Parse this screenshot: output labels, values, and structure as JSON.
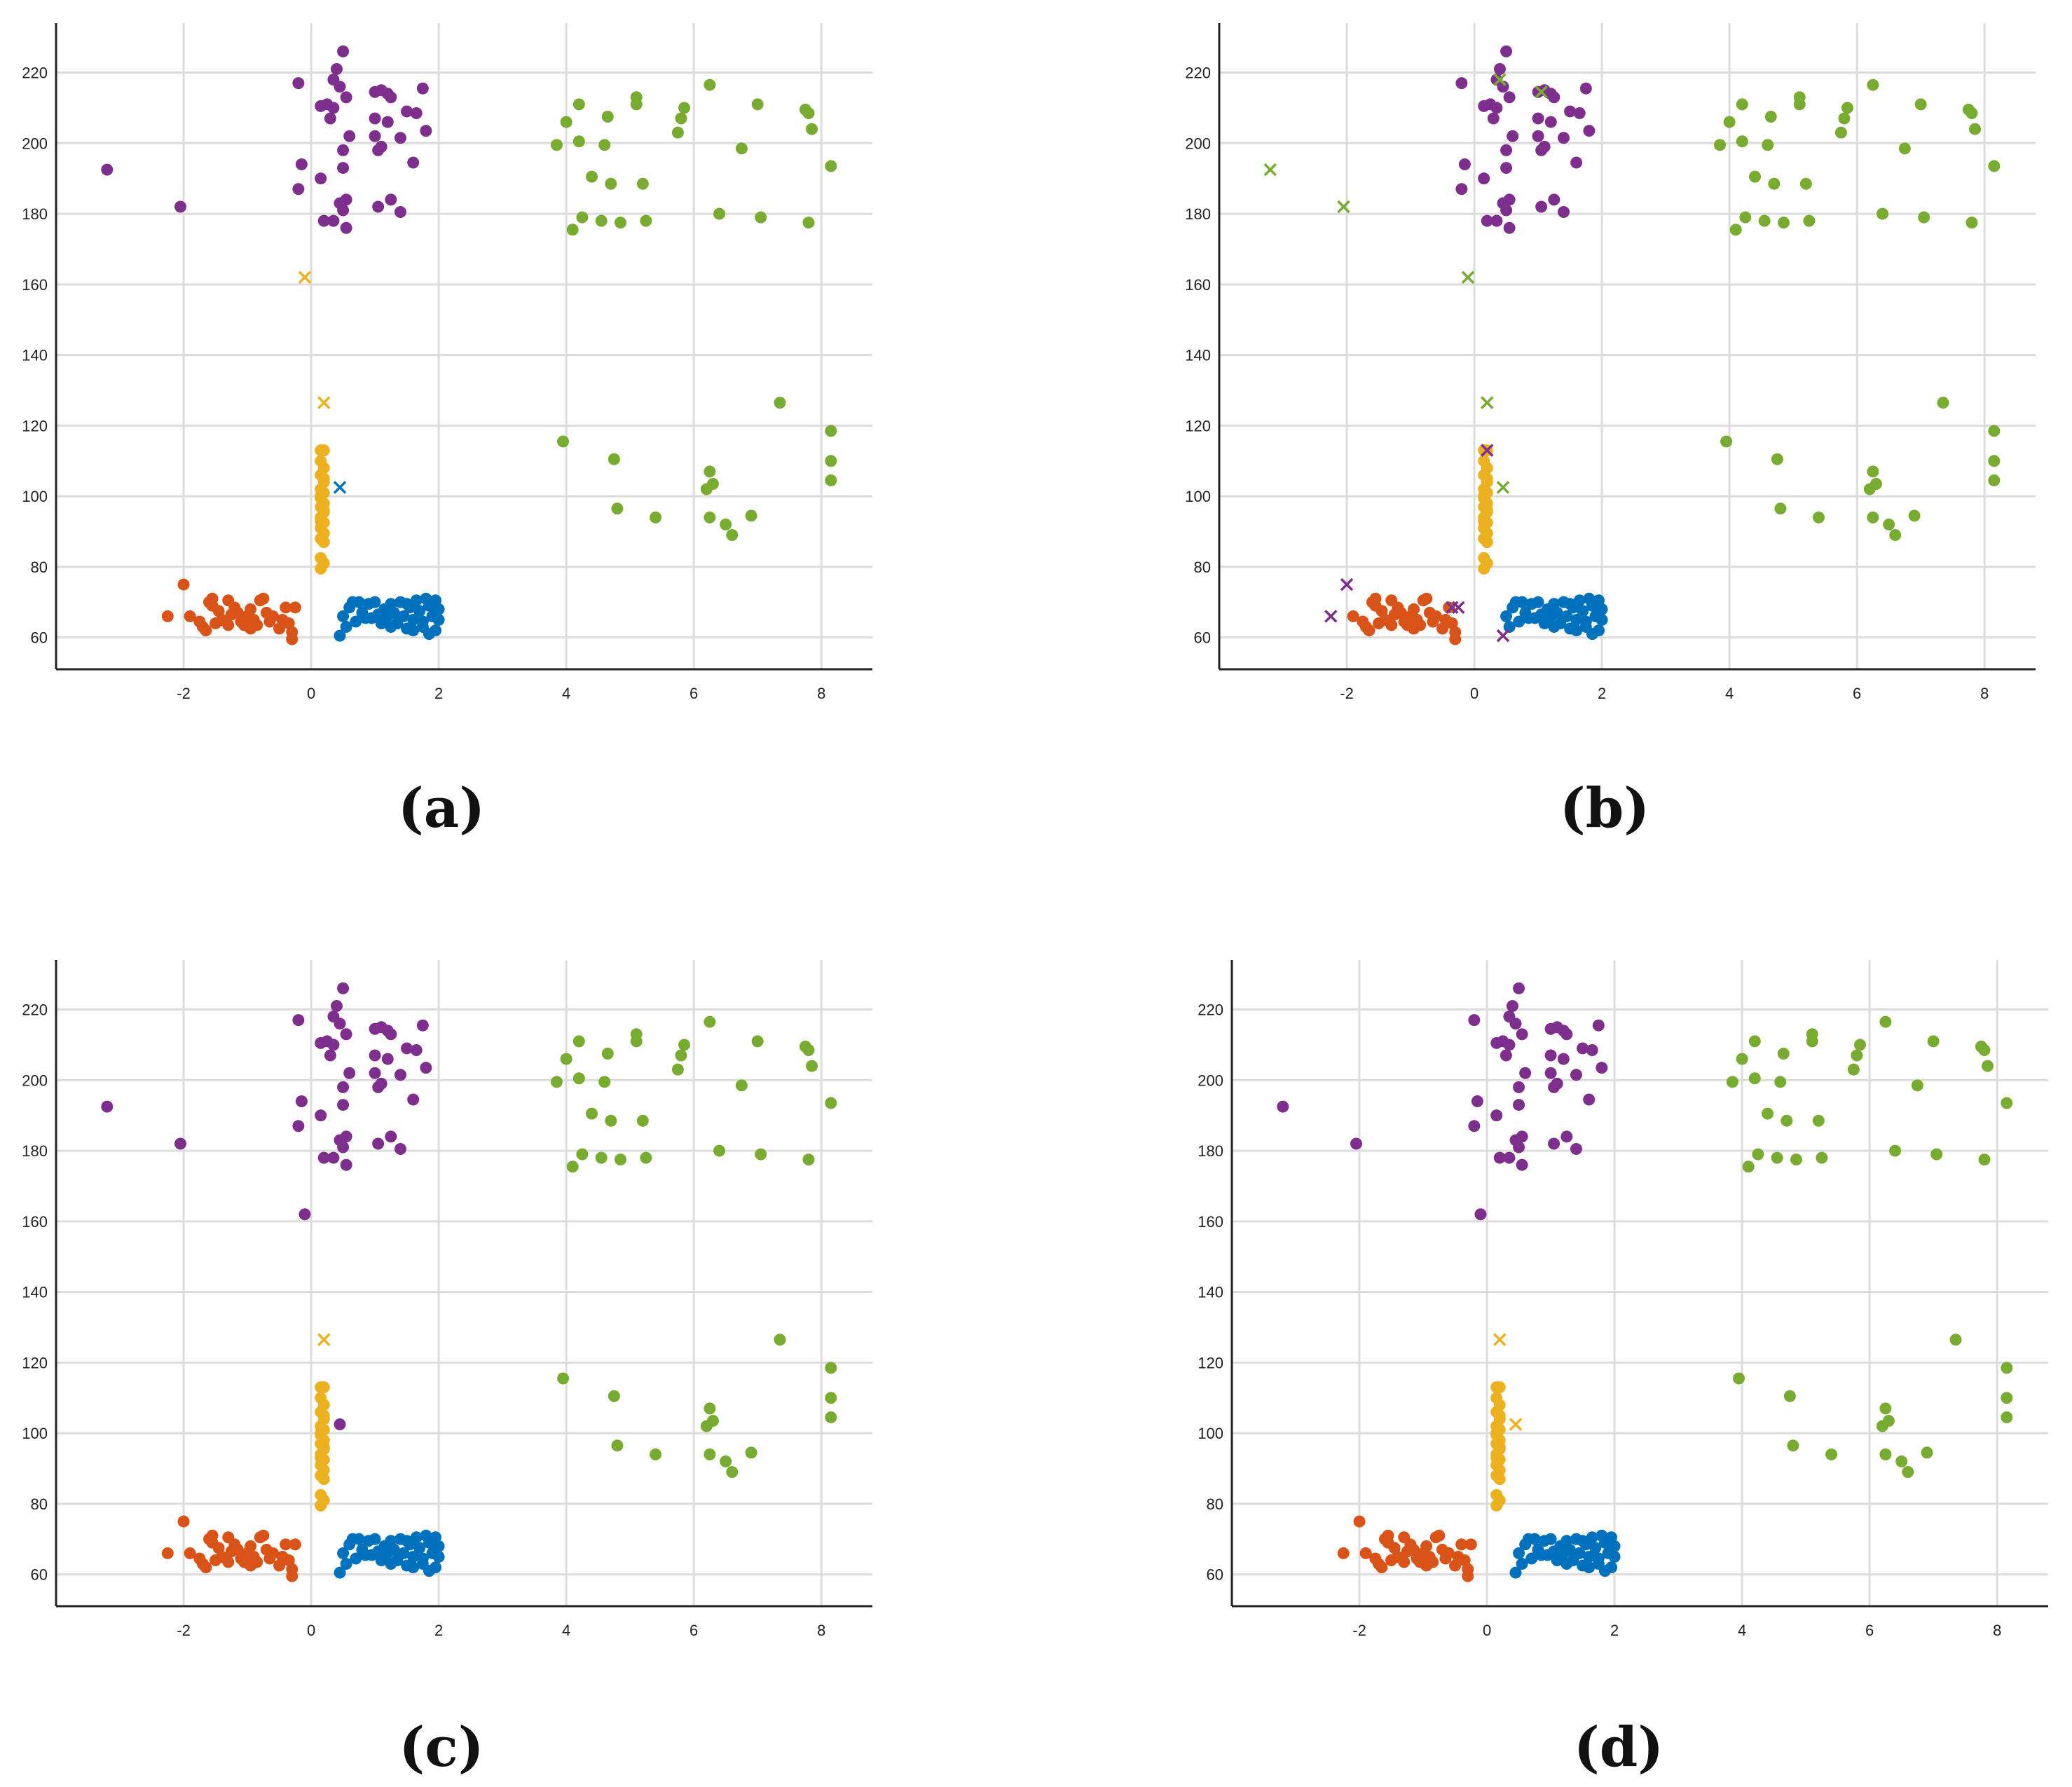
{
  "chart_data": [
    {
      "panel": "a",
      "label": "(a)",
      "type": "scatter",
      "xlim": [
        -4,
        8.8
      ],
      "ylim": [
        51,
        234
      ],
      "xticks": [
        -2,
        0,
        2,
        4,
        6,
        8
      ],
      "yticks": [
        60,
        80,
        100,
        120,
        140,
        160,
        180,
        200,
        220
      ],
      "grid": true,
      "outliers": [
        [
          -0.1,
          162,
          "yellow"
        ],
        [
          0.2,
          126.5,
          "yellow"
        ],
        [
          0.45,
          102.5,
          "blue"
        ]
      ],
      "point_overrides": []
    },
    {
      "panel": "b",
      "label": "(b)",
      "type": "scatter",
      "xlim": [
        -4,
        8.8
      ],
      "ylim": [
        51,
        234
      ],
      "xticks": [
        -2,
        0,
        2,
        4,
        6,
        8
      ],
      "yticks": [
        60,
        80,
        100,
        120,
        140,
        160,
        180,
        200,
        220
      ],
      "grid": true,
      "outliers": [
        [
          -3.2,
          192.5,
          "green"
        ],
        [
          -2.05,
          182,
          "green"
        ],
        [
          -0.1,
          162,
          "green"
        ],
        [
          0.2,
          126.5,
          "green"
        ],
        [
          0.45,
          102.5,
          "green"
        ],
        [
          0.2,
          113,
          "purple"
        ],
        [
          -2.0,
          75,
          "purple"
        ],
        [
          -2.25,
          66,
          "purple"
        ],
        [
          -0.35,
          68.5,
          "purple"
        ],
        [
          -0.25,
          68.5,
          "purple"
        ],
        [
          0.45,
          60.5,
          "purple"
        ],
        [
          0.4,
          218,
          "green"
        ],
        [
          1.05,
          214.5,
          "green"
        ]
      ],
      "point_overrides": [
        [
          -3.2,
          192.5
        ],
        [
          -2.05,
          182
        ],
        [
          -2.0,
          75
        ],
        [
          -2.25,
          66
        ],
        [
          0.45,
          60.5
        ],
        [
          -0.35,
          68.5
        ],
        [
          -0.25,
          68.5
        ]
      ]
    },
    {
      "panel": "c",
      "label": "(c)",
      "type": "scatter",
      "xlim": [
        -4,
        8.8
      ],
      "ylim": [
        51,
        234
      ],
      "xticks": [
        -2,
        0,
        2,
        4,
        6,
        8
      ],
      "yticks": [
        60,
        80,
        100,
        120,
        140,
        160,
        180,
        200,
        220
      ],
      "grid": true,
      "outliers": [
        [
          0.2,
          126.5,
          "yellow"
        ]
      ],
      "extra_points": [
        [
          -0.1,
          162,
          "purple"
        ],
        [
          0.45,
          102.5,
          "purple"
        ]
      ],
      "point_overrides": []
    },
    {
      "panel": "d",
      "label": "(d)",
      "type": "scatter",
      "xlim": [
        -4,
        8.8
      ],
      "ylim": [
        51,
        234
      ],
      "xticks": [
        -2,
        0,
        2,
        4,
        6,
        8
      ],
      "yticks": [
        60,
        80,
        100,
        120,
        140,
        160,
        180,
        200,
        220
      ],
      "grid": true,
      "outliers": [
        [
          0.2,
          126.5,
          "yellow"
        ],
        [
          0.45,
          102.5,
          "yellow"
        ]
      ],
      "extra_points": [
        [
          -0.1,
          162,
          "purple"
        ]
      ],
      "point_overrides": []
    }
  ],
  "colors": {
    "blue": "#0072bd",
    "orange": "#d95319",
    "yellow": "#edb120",
    "purple": "#7e2f8e",
    "green": "#77ac30",
    "grid": "#dcdcdc",
    "axis": "#222222"
  },
  "clusters": {
    "purple": [
      [
        -3.2,
        192.5
      ],
      [
        -2.05,
        182
      ],
      [
        -0.2,
        217
      ],
      [
        -0.15,
        194
      ],
      [
        -0.2,
        187
      ],
      [
        0.15,
        210.5
      ],
      [
        0.25,
        211
      ],
      [
        0.35,
        218
      ],
      [
        0.4,
        221
      ],
      [
        0.5,
        226
      ],
      [
        0.45,
        216
      ],
      [
        0.55,
        213
      ],
      [
        0.6,
        202
      ],
      [
        0.5,
        198
      ],
      [
        0.5,
        193
      ],
      [
        0.45,
        183
      ],
      [
        0.55,
        184
      ],
      [
        0.5,
        181
      ],
      [
        0.55,
        176
      ],
      [
        0.35,
        178
      ],
      [
        0.2,
        178
      ],
      [
        0.15,
        190
      ],
      [
        0.3,
        207
      ],
      [
        0.35,
        210
      ],
      [
        1.0,
        214.5
      ],
      [
        1.1,
        215
      ],
      [
        1.2,
        214
      ],
      [
        1.25,
        213
      ],
      [
        1.0,
        207
      ],
      [
        1.2,
        206
      ],
      [
        1.4,
        201.5
      ],
      [
        1.5,
        209
      ],
      [
        1.75,
        215.5
      ],
      [
        1.8,
        203.5
      ],
      [
        1.1,
        199
      ],
      [
        1.05,
        198
      ],
      [
        1.0,
        202
      ],
      [
        1.6,
        194.5
      ],
      [
        1.05,
        182
      ],
      [
        1.25,
        184
      ],
      [
        1.4,
        180.5
      ],
      [
        1.65,
        208.5
      ]
    ],
    "green": [
      [
        3.85,
        199.5
      ],
      [
        4.0,
        206
      ],
      [
        4.2,
        211
      ],
      [
        4.2,
        200.5
      ],
      [
        4.1,
        175.5
      ],
      [
        4.25,
        179
      ],
      [
        4.4,
        190.5
      ],
      [
        4.55,
        178
      ],
      [
        4.6,
        199.5
      ],
      [
        4.65,
        207.5
      ],
      [
        4.7,
        188.5
      ],
      [
        4.85,
        177.5
      ],
      [
        5.1,
        211
      ],
      [
        5.1,
        213
      ],
      [
        5.2,
        188.5
      ],
      [
        5.25,
        178
      ],
      [
        5.75,
        203
      ],
      [
        5.8,
        207
      ],
      [
        5.85,
        210
      ],
      [
        6.25,
        216.5
      ],
      [
        6.75,
        198.5
      ],
      [
        6.4,
        180
      ],
      [
        7.0,
        211
      ],
      [
        7.05,
        179
      ],
      [
        7.75,
        209.5
      ],
      [
        7.8,
        208.5
      ],
      [
        7.85,
        204
      ],
      [
        7.8,
        177.5
      ],
      [
        8.15,
        193.5
      ],
      [
        3.95,
        115.5
      ],
      [
        4.75,
        110.5
      ],
      [
        4.8,
        96.5
      ],
      [
        5.4,
        94
      ],
      [
        6.2,
        102
      ],
      [
        6.25,
        107
      ],
      [
        6.3,
        103.5
      ],
      [
        6.25,
        94
      ],
      [
        6.5,
        92
      ],
      [
        6.6,
        89
      ],
      [
        6.9,
        94.5
      ],
      [
        7.35,
        126.5
      ],
      [
        8.15,
        118.5
      ],
      [
        8.15,
        110
      ],
      [
        8.15,
        104.5
      ]
    ],
    "yellow": [
      [
        0.15,
        113
      ],
      [
        0.2,
        113
      ],
      [
        0.15,
        110
      ],
      [
        0.2,
        108
      ],
      [
        0.15,
        106
      ],
      [
        0.2,
        104
      ],
      [
        0.15,
        102
      ],
      [
        0.2,
        101
      ],
      [
        0.15,
        99.5
      ],
      [
        0.2,
        98
      ],
      [
        0.15,
        97
      ],
      [
        0.2,
        95.5
      ],
      [
        0.15,
        94
      ],
      [
        0.2,
        92.5
      ],
      [
        0.15,
        91
      ],
      [
        0.2,
        89.5
      ],
      [
        0.15,
        88
      ],
      [
        0.2,
        87
      ],
      [
        0.15,
        82.5
      ],
      [
        0.2,
        81
      ],
      [
        0.15,
        79.5
      ],
      [
        0.2,
        96
      ],
      [
        0.15,
        100
      ],
      [
        0.2,
        105
      ],
      [
        0.15,
        93
      ]
    ],
    "orange": [
      [
        -2.0,
        75
      ],
      [
        -2.25,
        66
      ],
      [
        -1.9,
        66
      ],
      [
        -1.75,
        64.5
      ],
      [
        -1.7,
        63
      ],
      [
        -1.65,
        62
      ],
      [
        -1.55,
        71
      ],
      [
        -1.55,
        69
      ],
      [
        -1.5,
        64
      ],
      [
        -1.4,
        65
      ],
      [
        -1.3,
        63.5
      ],
      [
        -1.3,
        70.5
      ],
      [
        -1.2,
        68.5
      ],
      [
        -1.15,
        67
      ],
      [
        -1.1,
        64.5
      ],
      [
        -1.05,
        63.5
      ],
      [
        -1.0,
        66
      ],
      [
        -0.95,
        68
      ],
      [
        -0.9,
        65
      ],
      [
        -0.85,
        63.5
      ],
      [
        -0.8,
        70.5
      ],
      [
        -0.75,
        71
      ],
      [
        -0.7,
        67
      ],
      [
        -0.65,
        64.5
      ],
      [
        -0.6,
        66
      ],
      [
        -0.5,
        62.5
      ],
      [
        -0.45,
        65
      ],
      [
        -0.4,
        68.5
      ],
      [
        -0.35,
        64
      ],
      [
        -0.3,
        59.5
      ],
      [
        -0.25,
        68.5
      ],
      [
        -0.3,
        61.5
      ],
      [
        -1.25,
        66.5
      ],
      [
        -1.45,
        67.5
      ],
      [
        -0.95,
        62.5
      ],
      [
        -1.6,
        70
      ]
    ],
    "blue": [
      [
        0.45,
        60.5
      ],
      [
        0.5,
        66
      ],
      [
        0.55,
        63
      ],
      [
        0.6,
        68.5
      ],
      [
        0.7,
        64.5
      ],
      [
        0.75,
        70
      ],
      [
        0.8,
        67
      ],
      [
        0.85,
        65.5
      ],
      [
        0.9,
        69.5
      ],
      [
        1.0,
        70
      ],
      [
        1.05,
        66.5
      ],
      [
        1.1,
        64
      ],
      [
        1.15,
        68
      ],
      [
        1.2,
        66
      ],
      [
        1.25,
        69.5
      ],
      [
        1.3,
        67
      ],
      [
        1.35,
        64
      ],
      [
        1.4,
        70
      ],
      [
        1.45,
        66
      ],
      [
        1.5,
        62.5
      ],
      [
        1.55,
        68.5
      ],
      [
        1.6,
        65
      ],
      [
        1.65,
        70.5
      ],
      [
        1.7,
        67.5
      ],
      [
        1.75,
        63
      ],
      [
        1.8,
        71
      ],
      [
        1.85,
        69
      ],
      [
        1.9,
        66
      ],
      [
        1.95,
        62
      ],
      [
        1.95,
        70.5
      ],
      [
        2.0,
        65
      ],
      [
        2.0,
        68
      ],
      [
        1.85,
        61
      ],
      [
        1.15,
        64.5
      ],
      [
        0.95,
        65.5
      ],
      [
        1.6,
        62
      ],
      [
        1.75,
        64.5
      ],
      [
        0.65,
        70
      ],
      [
        1.25,
        63
      ],
      [
        1.5,
        69.5
      ]
    ]
  }
}
